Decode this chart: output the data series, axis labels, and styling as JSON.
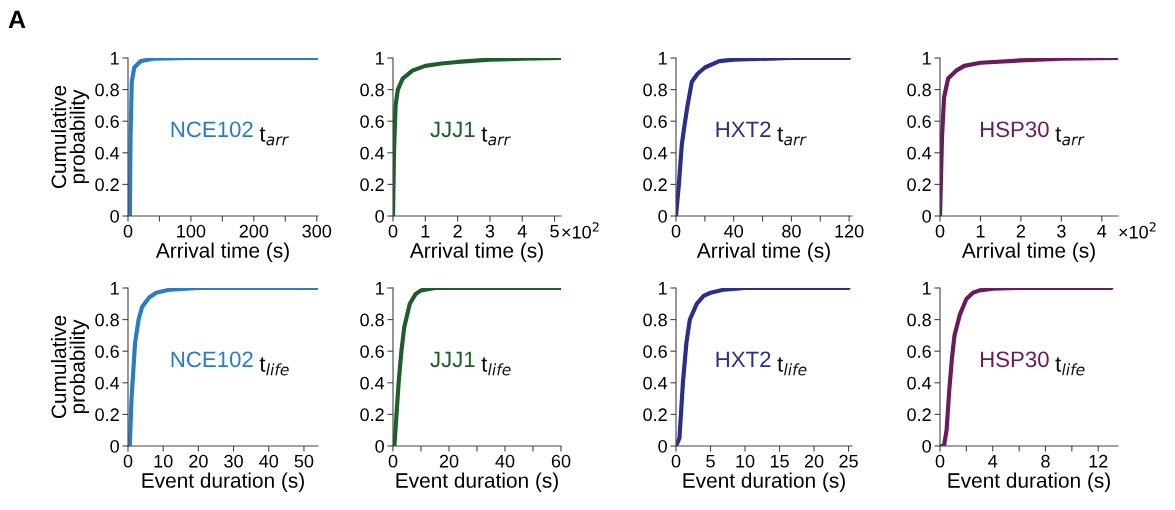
{
  "chart_data": [
    {
      "type": "line",
      "xlabel": "Arrival time (s)",
      "ylabel": "Cumulative\nprobability",
      "annotations": [
        "t$_{arr}$",
        "A"
      ],
      "xlim": [
        0,
        302
      ],
      "ylim": [
        0,
        1
      ],
      "xticks": [
        0,
        {
          "value": 50,
          "label": null
        },
        100,
        {
          "value": 150,
          "label": null
        },
        200,
        {
          "value": 250,
          "label": null
        },
        300
      ],
      "yticks": [
        0,
        0.2,
        0.4,
        0.6,
        0.8,
        1
      ],
      "grid": false,
      "marker": "none",
      "line_style": "solid",
      "series": [
        {
          "name": "NCE102",
          "color": "#2a7cc7",
          "x": [
            0,
            3,
            4,
            6,
            10,
            20,
            40,
            100,
            300
          ],
          "values": [
            0,
            0,
            0.5,
            0.85,
            0.94,
            0.98,
            0.995,
            1,
            1
          ]
        }
      ]
    },
    {
      "type": "line",
      "xlabel": "Arrival time (s)",
      "annotations": [
        "t$_{arr}$",
        "×10$^{2}$"
      ],
      "xlim": [
        0,
        5.2
      ],
      "ylim": [
        0,
        1
      ],
      "xticks": [
        0,
        1,
        2,
        3,
        4,
        5
      ],
      "yticks": [
        0,
        0.2,
        0.4,
        0.6,
        0.8,
        1
      ],
      "grid": false,
      "marker": "none",
      "line_style": "solid",
      "series": [
        {
          "name": "JJJ1",
          "color": "#1e5e2a",
          "x": [
            0,
            0.03,
            0.08,
            0.15,
            0.3,
            0.6,
            1,
            1.5,
            2,
            3,
            4,
            5.2
          ],
          "values": [
            0,
            0.4,
            0.7,
            0.8,
            0.87,
            0.92,
            0.95,
            0.965,
            0.975,
            0.99,
            0.995,
            1
          ]
        }
      ]
    },
    {
      "type": "line",
      "xlabel": "Arrival time (s)",
      "annotations": [
        "t$_{arr}$"
      ],
      "xlim": [
        0,
        122
      ],
      "ylim": [
        0,
        1
      ],
      "xticks": [
        0,
        {
          "value": 20,
          "label": null
        },
        40,
        {
          "value": 60,
          "label": null
        },
        80,
        {
          "value": 100,
          "label": null
        },
        120
      ],
      "yticks": [
        0,
        0.2,
        0.4,
        0.6,
        0.8,
        1
      ],
      "grid": false,
      "marker": "none",
      "line_style": "solid",
      "series": [
        {
          "name": "HXT2",
          "color": "#2b2f8a",
          "x": [
            0,
            2,
            4,
            6,
            8,
            11,
            15,
            20,
            30,
            40,
            80,
            120
          ],
          "values": [
            0,
            0.2,
            0.45,
            0.58,
            0.7,
            0.85,
            0.9,
            0.94,
            0.98,
            0.99,
            1,
            1
          ]
        }
      ]
    },
    {
      "type": "line",
      "xlabel": "Arrival time (s)",
      "annotations": [
        "t$_{arr}$",
        "×10$^{2}$"
      ],
      "xlim": [
        0,
        4.4
      ],
      "ylim": [
        0,
        1
      ],
      "xticks": [
        0,
        1,
        2,
        3,
        4
      ],
      "yticks": [
        0,
        0.2,
        0.4,
        0.6,
        0.8,
        1
      ],
      "grid": false,
      "marker": "none",
      "line_style": "solid",
      "series": [
        {
          "name": "HSP30",
          "color": "#6b1a5c",
          "x": [
            0,
            0.05,
            0.1,
            0.2,
            0.4,
            0.6,
            1,
            2,
            3,
            4.4
          ],
          "values": [
            0,
            0.5,
            0.75,
            0.87,
            0.92,
            0.95,
            0.97,
            0.985,
            0.995,
            1
          ]
        }
      ]
    },
    {
      "type": "line",
      "xlabel": "Event duration (s)",
      "ylabel": "Cumulative\nprobability",
      "annotations": [
        "t$_{life}$"
      ],
      "xlim": [
        0,
        54
      ],
      "ylim": [
        0,
        1
      ],
      "xticks": [
        0,
        10,
        20,
        30,
        40,
        50
      ],
      "yticks": [
        0,
        0.2,
        0.4,
        0.6,
        0.8,
        1
      ],
      "grid": false,
      "marker": "none",
      "line_style": "solid",
      "series": [
        {
          "name": "NCE102",
          "color": "#2a7cc7",
          "x": [
            0,
            0.5,
            1,
            2,
            3,
            4,
            6,
            8,
            12,
            20,
            54
          ],
          "values": [
            0,
            0,
            0.3,
            0.65,
            0.8,
            0.88,
            0.94,
            0.97,
            0.99,
            1,
            1
          ]
        }
      ]
    },
    {
      "type": "line",
      "xlabel": "Event duration (s)",
      "annotations": [
        "t$_{life}$"
      ],
      "xlim": [
        0,
        60
      ],
      "ylim": [
        0,
        1
      ],
      "xticks": [
        0,
        {
          "value": 10,
          "label": null
        },
        20,
        {
          "value": 30,
          "label": null
        },
        40,
        {
          "value": 50,
          "label": null
        },
        60
      ],
      "yticks": [
        0,
        0.2,
        0.4,
        0.6,
        0.8,
        1
      ],
      "grid": false,
      "marker": "none",
      "line_style": "solid",
      "series": [
        {
          "name": "JJJ1",
          "color": "#1e5e2a",
          "x": [
            0,
            0.5,
            2,
            3,
            4,
            6,
            8,
            10,
            15,
            60
          ],
          "values": [
            0,
            0,
            0.4,
            0.6,
            0.75,
            0.9,
            0.96,
            0.985,
            1,
            1
          ]
        }
      ]
    },
    {
      "type": "line",
      "xlabel": "Event duration (s)",
      "annotations": [
        "t$_{life}$"
      ],
      "xlim": [
        0,
        25.5
      ],
      "ylim": [
        0,
        1
      ],
      "xticks": [
        0,
        5,
        10,
        15,
        20,
        25
      ],
      "yticks": [
        0,
        0.2,
        0.4,
        0.6,
        0.8,
        1
      ],
      "grid": false,
      "marker": "none",
      "line_style": "solid",
      "series": [
        {
          "name": "HXT2",
          "color": "#2b2f8a",
          "x": [
            0,
            0.5,
            1,
            1.5,
            2,
            3,
            4,
            5,
            7,
            10,
            25
          ],
          "values": [
            0,
            0.05,
            0.4,
            0.65,
            0.8,
            0.9,
            0.95,
            0.97,
            0.99,
            1,
            1
          ]
        }
      ]
    },
    {
      "type": "line",
      "xlabel": "Event duration (s)",
      "annotations": [
        "t$_{life}$"
      ],
      "xlim": [
        0,
        13.5
      ],
      "ylim": [
        0,
        1
      ],
      "xticks": [
        0,
        {
          "value": 2,
          "label": null
        },
        4,
        {
          "value": 6,
          "label": null
        },
        8,
        {
          "value": 10,
          "label": null
        },
        12
      ],
      "yticks": [
        0,
        0.2,
        0.4,
        0.6,
        0.8,
        1
      ],
      "grid": false,
      "marker": "none",
      "line_style": "solid",
      "series": [
        {
          "name": "HSP30",
          "color": "#6b1a5c",
          "x": [
            0,
            0.3,
            0.5,
            0.7,
            0.9,
            1.1,
            1.5,
            2,
            2.5,
            3,
            4,
            6,
            13
          ],
          "values": [
            0,
            0,
            0.1,
            0.35,
            0.55,
            0.7,
            0.83,
            0.93,
            0.97,
            0.985,
            0.995,
            1,
            1
          ]
        }
      ]
    }
  ]
}
